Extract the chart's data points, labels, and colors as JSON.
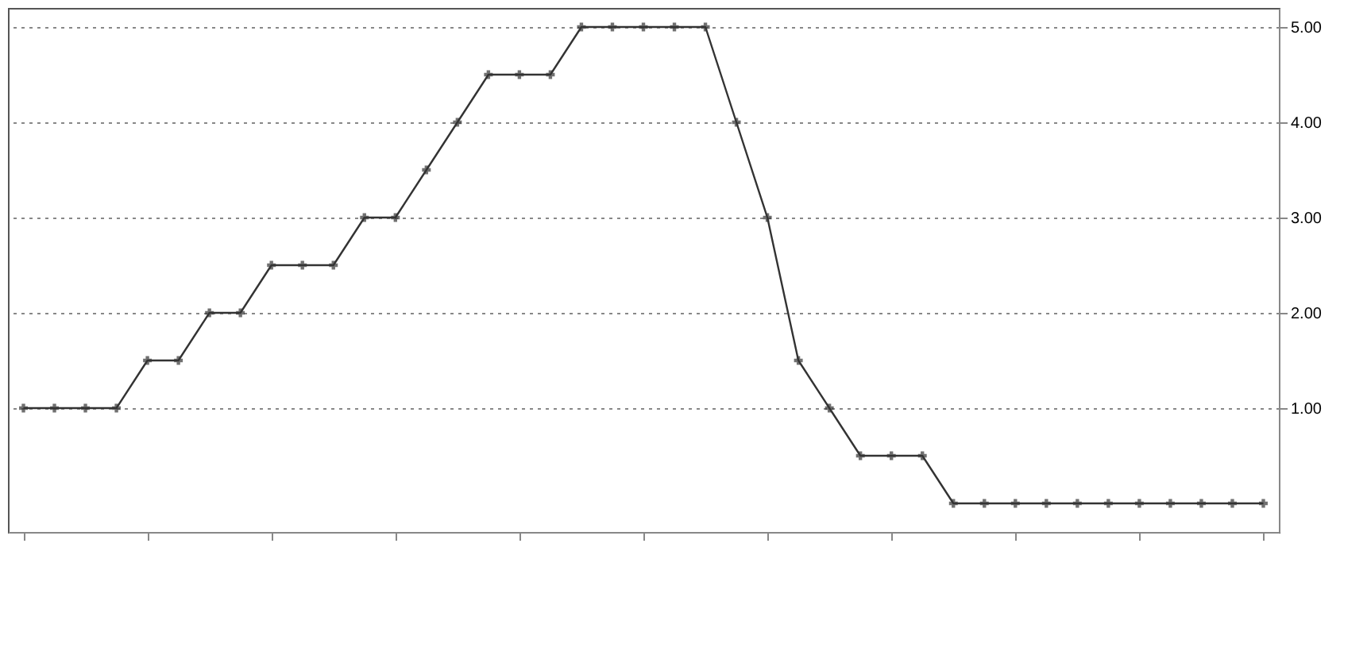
{
  "chart_data": {
    "type": "line",
    "categories": [
      null,
      null,
      null,
      null,
      null,
      null,
      null,
      null,
      null,
      null,
      null,
      null,
      null,
      null,
      null,
      null,
      null,
      null,
      null,
      null,
      null,
      null,
      null,
      null,
      null,
      null,
      null,
      null,
      null,
      null,
      null,
      null,
      null,
      null,
      null,
      null,
      null,
      null,
      null,
      null,
      null
    ],
    "series": [
      {
        "color": "#333333",
        "values": [
          1.0,
          1.0,
          1.0,
          1.0,
          1.5,
          1.5,
          2.0,
          2.0,
          2.5,
          2.5,
          2.5,
          3.0,
          3.0,
          3.5,
          4.0,
          4.5,
          4.5,
          4.5,
          5.0,
          5.0,
          5.0,
          5.0,
          5.0,
          4.0,
          3.0,
          1.5,
          1.0,
          0.5,
          0.5,
          0.5,
          0,
          0,
          0,
          0,
          0,
          0,
          0,
          0,
          0,
          0,
          0
        ]
      }
    ],
    "ylim": [
      -0.3,
      5.2
    ],
    "yticks": [
      {
        "value": 1,
        "label": "1.00"
      },
      {
        "value": 2,
        "label": "2.00"
      },
      {
        "value": 3,
        "label": "3.00"
      },
      {
        "value": 4,
        "label": "4.00"
      },
      {
        "value": 5,
        "label": "5.00"
      }
    ],
    "grid": "y",
    "marker": "cross",
    "line_style": "solid",
    "tick_labels": "y"
  }
}
